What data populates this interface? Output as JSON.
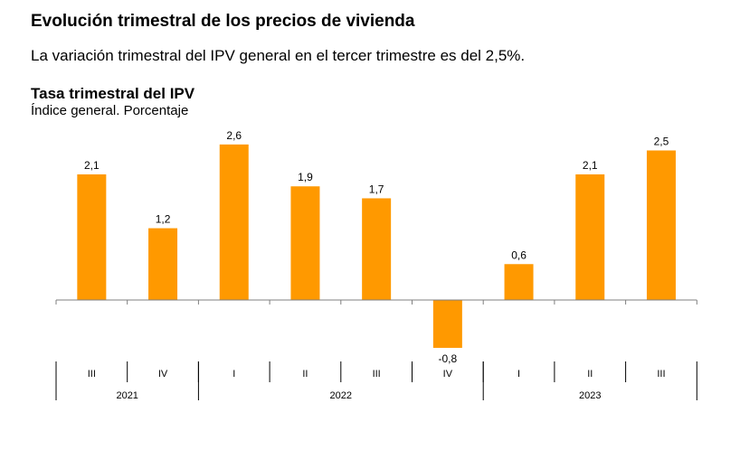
{
  "page": {
    "title": "Evolución trimestral de los precios de vivienda",
    "subtitle": "La variación trimestral del IPV general en el tercer trimestre es del 2,5%."
  },
  "chart_data": {
    "type": "bar",
    "title": "Tasa trimestral del IPV",
    "subtitle": "Índice general. Porcentaje",
    "categories": [
      "III",
      "IV",
      "I",
      "II",
      "III",
      "IV",
      "I",
      "II",
      "III"
    ],
    "value_labels": [
      "2,1",
      "1,2",
      "2,6",
      "1,9",
      "1,7",
      "-0,8",
      "0,6",
      "2,1",
      "2,5"
    ],
    "values": [
      2.1,
      1.2,
      2.6,
      1.9,
      1.7,
      -0.8,
      0.6,
      2.1,
      2.5
    ],
    "years": [
      {
        "label": "2021",
        "quarters": 2
      },
      {
        "label": "2022",
        "quarters": 4
      },
      {
        "label": "2023",
        "quarters": 3
      }
    ],
    "color": "#FF9900",
    "grid": false,
    "legend": "none"
  }
}
